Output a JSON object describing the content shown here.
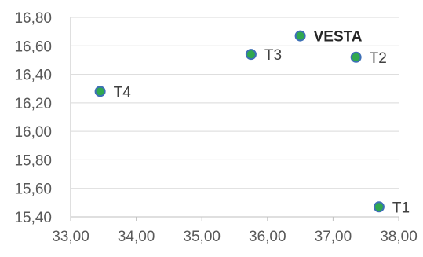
{
  "chart_data": {
    "type": "scatter",
    "title": "",
    "xlabel": "",
    "ylabel": "",
    "xlim": [
      33.0,
      38.0
    ],
    "ylim": [
      15.4,
      16.8
    ],
    "x_ticks": [
      33.0,
      34.0,
      35.0,
      36.0,
      37.0,
      38.0
    ],
    "y_ticks": [
      15.4,
      15.6,
      15.8,
      16.0,
      16.2,
      16.4,
      16.6,
      16.8
    ],
    "x_tick_labels": [
      "33,00",
      "34,00",
      "35,00",
      "36,00",
      "37,00",
      "38,00"
    ],
    "y_tick_labels": [
      "15,40",
      "15,60",
      "15,80",
      "16,00",
      "16,20",
      "16,40",
      "16,60",
      "16,80"
    ],
    "grid": {
      "horizontal": true,
      "vertical": false
    },
    "legend": "none",
    "colors": {
      "marker_fill": "#2fa84f",
      "marker_edge": "#3d6fb6",
      "grid": "#d9d9d9",
      "axis": "#bfbfbf"
    },
    "points": [
      {
        "label": "VESTA",
        "x": 36.5,
        "y": 16.67,
        "bold": true
      },
      {
        "label": "T3",
        "x": 35.75,
        "y": 16.54,
        "bold": false
      },
      {
        "label": "T2",
        "x": 37.35,
        "y": 16.52,
        "bold": false
      },
      {
        "label": "T4",
        "x": 33.45,
        "y": 16.28,
        "bold": false
      },
      {
        "label": "T1",
        "x": 37.7,
        "y": 15.47,
        "bold": false
      }
    ]
  }
}
